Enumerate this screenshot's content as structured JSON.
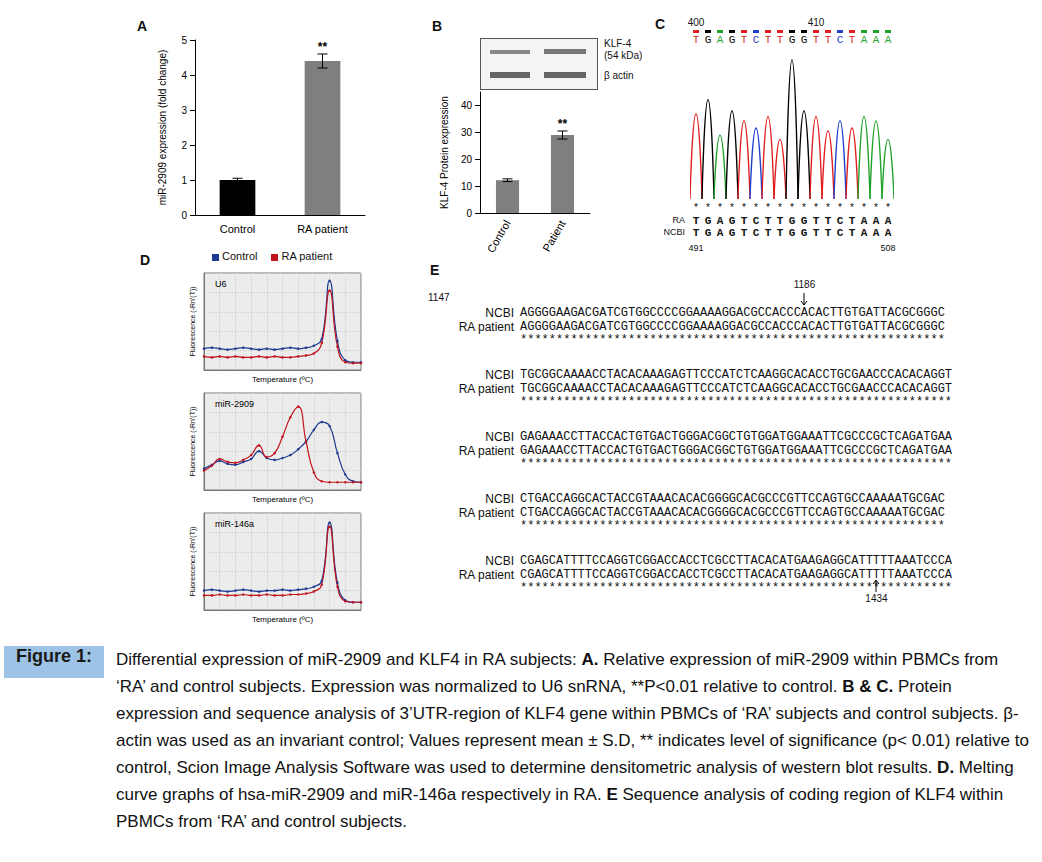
{
  "chart_data": [
    {
      "panel": "A",
      "type": "bar",
      "y_label": "miR-2909 expression (fold change)",
      "categories": [
        "Control",
        "RA patient"
      ],
      "values": [
        1.0,
        4.4
      ],
      "errors": [
        0.05,
        0.2
      ],
      "colors": [
        "#000000",
        "#7f7f7f"
      ],
      "ylim": [
        0,
        5
      ],
      "yticks": [
        0,
        1,
        2,
        3,
        4,
        5
      ],
      "grid": false,
      "annotations": [
        {
          "category": "RA patient",
          "text": "**"
        }
      ]
    },
    {
      "panel": "B",
      "type": "bar",
      "y_label": "KLF-4 Protein expression",
      "categories": [
        "Control",
        "Patient"
      ],
      "values": [
        12.2,
        29
      ],
      "errors": [
        0.5,
        1.5
      ],
      "colors": [
        "#7f7f7f",
        "#7f7f7f"
      ],
      "ylim": [
        0,
        45
      ],
      "yticks": [
        0,
        10,
        20,
        30,
        40
      ],
      "grid": false,
      "annotations": [
        {
          "category": "Patient",
          "text": "**"
        }
      ],
      "blot_labels": [
        [
          "KLF-4",
          "(54 kDa)"
        ],
        [
          "β actin"
        ]
      ]
    },
    {
      "panel": "C",
      "type": "chromatogram",
      "sequence": "TGAGTCTTGGTTCTAAA",
      "peaks": [
        60,
        70,
        45,
        62,
        55,
        50,
        58,
        42,
        98,
        62,
        58,
        48,
        55,
        50,
        58,
        55,
        42
      ],
      "base_colors": {
        "A": "#1fa12a",
        "C": "#1f3fcf",
        "G": "#000000",
        "T": "#e01e1e"
      },
      "xlim": [
        -0.5,
        16.5
      ],
      "ylim": [
        0,
        100
      ],
      "tick_labels": false,
      "grid": false,
      "position_numbers": [
        400,
        410
      ],
      "alignment": {
        "match": "*****************",
        "rows": [
          {
            "name": "RA",
            "sequence": "TGAGTCTTGGTTCTAAA"
          },
          {
            "name": "NCBI",
            "sequence": "TGAGTCTTGGTTCTAAA"
          }
        ],
        "start": 491,
        "end": 508
      }
    },
    {
      "panel": "D",
      "type": "line",
      "title": "U6",
      "x_label": "Temperature (ºC)",
      "y_label": "Fluorescence (-Rn'(T))",
      "x": [
        0,
        5,
        10,
        15,
        20,
        25,
        30,
        35,
        40,
        45,
        50,
        55,
        60,
        65,
        70,
        75,
        80,
        85,
        90,
        95,
        100
      ],
      "series": [
        {
          "name": "Control",
          "color": "#1f3a93",
          "values": [
            22,
            23,
            22,
            21,
            22,
            23,
            22,
            21,
            22,
            21,
            22,
            23,
            22,
            23,
            25,
            32,
            92,
            30,
            10,
            8,
            8
          ]
        },
        {
          "name": "RA patient",
          "color": "#c0141c",
          "values": [
            14,
            13,
            14,
            13,
            14,
            13,
            13,
            14,
            13,
            14,
            13,
            13,
            14,
            15,
            17,
            28,
            82,
            24,
            8,
            7,
            7
          ]
        }
      ],
      "xlim": [
        0,
        100
      ],
      "ylim": [
        0,
        100
      ],
      "xticks": [
        0,
        10,
        20,
        30,
        40,
        50,
        60,
        70,
        80,
        90,
        100
      ],
      "yticks": [
        0,
        20,
        40,
        60,
        80,
        100
      ],
      "tick_labels": false,
      "grid": true,
      "marker": "circle",
      "legend": "top"
    },
    {
      "panel": "D",
      "type": "line",
      "title": "miR-2909",
      "x_label": "Temperature (ºC)",
      "y_label": "Fluorescence (-Rn'(T))",
      "x": [
        0,
        5,
        10,
        15,
        20,
        25,
        30,
        35,
        40,
        45,
        50,
        55,
        60,
        65,
        70,
        75,
        80,
        85,
        90,
        95,
        100
      ],
      "series": [
        {
          "name": "Control",
          "color": "#1f3a93",
          "values": [
            22,
            26,
            30,
            27,
            26,
            29,
            32,
            40,
            33,
            31,
            33,
            36,
            42,
            50,
            62,
            70,
            66,
            38,
            16,
            9,
            8
          ]
        },
        {
          "name": "RA patient",
          "color": "#c0141c",
          "values": [
            20,
            25,
            32,
            29,
            28,
            31,
            36,
            46,
            34,
            38,
            55,
            75,
            86,
            50,
            18,
            9,
            8,
            8,
            8,
            8,
            8
          ]
        }
      ],
      "xlim": [
        0,
        100
      ],
      "ylim": [
        0,
        100
      ],
      "xticks": [
        0,
        10,
        20,
        30,
        40,
        50,
        60,
        70,
        80,
        90,
        100
      ],
      "yticks": [
        0,
        20,
        40,
        60,
        80,
        100
      ],
      "tick_labels": false,
      "grid": true,
      "marker": "circle"
    },
    {
      "panel": "D",
      "type": "line",
      "title": "miR-146a",
      "x_label": "Temperature (ºC)",
      "y_label": "Fluorescence (-Rn'(T))",
      "x": [
        0,
        5,
        10,
        15,
        20,
        25,
        30,
        35,
        40,
        45,
        50,
        55,
        60,
        65,
        70,
        75,
        80,
        85,
        90,
        95,
        100
      ],
      "series": [
        {
          "name": "Control",
          "color": "#1f3a93",
          "values": [
            20,
            21,
            20,
            19,
            20,
            21,
            20,
            19,
            20,
            20,
            21,
            20,
            21,
            22,
            24,
            30,
            90,
            28,
            10,
            8,
            8
          ]
        },
        {
          "name": "RA patient",
          "color": "#c0141c",
          "values": [
            15,
            15,
            16,
            15,
            15,
            16,
            15,
            15,
            16,
            15,
            15,
            16,
            16,
            17,
            19,
            26,
            86,
            24,
            9,
            8,
            8
          ]
        }
      ],
      "xlim": [
        0,
        100
      ],
      "ylim": [
        0,
        100
      ],
      "xticks": [
        0,
        10,
        20,
        30,
        40,
        50,
        60,
        70,
        80,
        90,
        100
      ],
      "yticks": [
        0,
        20,
        40,
        60,
        80,
        100
      ],
      "tick_labels": false,
      "grid": true,
      "marker": "circle"
    }
  ],
  "sequence_alignment": {
    "panel": "E",
    "start": 1147,
    "arrows": [
      1186,
      1434
    ],
    "row_names": [
      "NCBI",
      "RA patient"
    ],
    "blocks": [
      {
        "ncbi": "AGGGGAAGACGATCGTGGCCCCGGAAAAGGACGCCACCCACACTTGTGATTACGCGGGC",
        "ra": "AGGGGAAGACGATCGTGGCCCCGGAAAAGGACGCCACCCACACTTGTGATTACGCGGGC",
        "match": "***********************************************************"
      },
      {
        "ncbi": "TGCGGCAAAACCTACACAAAGAGTTCCCATCTCAAGGCACACCTGCGAACCCACACAGGT",
        "ra": "TGCGGCAAAACCTACACAAAGAGTTCCCATCTCAAGGCACACCTGCGAACCCACACAGGT",
        "match": "************************************************************"
      },
      {
        "ncbi": "GAGAAACCTTACCACTGTGACTGGGACGGCTGTGGATGGAAATTCGCCCGCTCAGATGAA",
        "ra": "GAGAAACCTTACCACTGTGACTGGGACGGCTGTGGATGGAAATTCGCCCGCTCAGATGAA",
        "match": "************************************************************"
      },
      {
        "ncbi": "CTGACCAGGCACTACCGTAAACACACGGGGCACGCCCGTTCCAGTGCCAAAAATGCGAC",
        "ra": "CTGACCAGGCACTACCGTAAACACACGGGGCACGCCCGTTCCAGTGCCAAAAATGCGAC",
        "match": "***********************************************************"
      },
      {
        "ncbi": "CGAGCATTTTCCAGGTCGGACCACCTCGCCTTACACATGAAGAGGCATTTTTAAATCCCA",
        "ra": "CGAGCATTTTCCAGGTCGGACCACCTCGCCTTACACATGAAGAGGCATTTTTAAATCCCA",
        "match": "************************************************************"
      }
    ]
  },
  "caption": {
    "label": "Figure 1:",
    "segments": [
      {
        "text": "Differential expression of miR-2909 and KLF4 in RA subjects: ",
        "bold": false
      },
      {
        "text": "A.",
        "bold": true
      },
      {
        "text": " Relative expression of miR-2909 within PBMCs from ‘RA’ and control subjects. Expression was normalized to U6 snRNA, **P<0.01 relative to control. ",
        "bold": false
      },
      {
        "text": "B & C.",
        "bold": true
      },
      {
        "text": " Protein expression and sequence analysis of 3’UTR-region of KLF4 gene within PBMCs of ‘RA’ subjects and control subjects. β-actin was used as an invariant control; Values represent mean ± S.D, ** indicates level of significance (p< 0.01) relative to control, Scion Image Analysis Software was used to determine densitometric analysis of western blot results. ",
        "bold": false
      },
      {
        "text": "D.",
        "bold": true
      },
      {
        "text": " Melting curve graphs of hsa-miR-2909 and miR-146a respectively in RA. ",
        "bold": false
      },
      {
        "text": "E",
        "bold": true
      },
      {
        "text": " Sequence analysis of coding region of KLF4 within PBMCs from ‘RA’ and control subjects.",
        "bold": false
      }
    ]
  }
}
